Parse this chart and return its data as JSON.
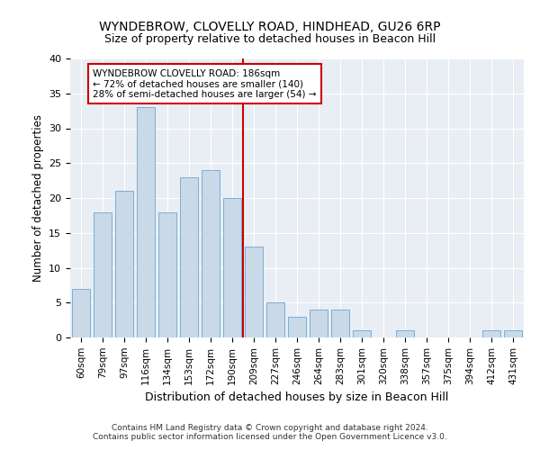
{
  "title1": "WYNDEBROW, CLOVELLY ROAD, HINDHEAD, GU26 6RP",
  "title2": "Size of property relative to detached houses in Beacon Hill",
  "xlabel": "Distribution of detached houses by size in Beacon Hill",
  "ylabel": "Number of detached properties",
  "categories": [
    "60sqm",
    "79sqm",
    "97sqm",
    "116sqm",
    "134sqm",
    "153sqm",
    "172sqm",
    "190sqm",
    "209sqm",
    "227sqm",
    "246sqm",
    "264sqm",
    "283sqm",
    "301sqm",
    "320sqm",
    "338sqm",
    "357sqm",
    "375sqm",
    "394sqm",
    "412sqm",
    "431sqm"
  ],
  "values": [
    7,
    18,
    21,
    33,
    18,
    23,
    24,
    20,
    13,
    5,
    3,
    4,
    4,
    1,
    0,
    1,
    0,
    0,
    0,
    1,
    1
  ],
  "bar_color": "#c9d9e8",
  "bar_edgecolor": "#7bafd4",
  "vline_color": "#cc0000",
  "annotation_text": "WYNDEBROW CLOVELLY ROAD: 186sqm\n← 72% of detached houses are smaller (140)\n28% of semi-detached houses are larger (54) →",
  "annotation_box_color": "#ffffff",
  "annotation_box_edgecolor": "#cc0000",
  "ylim": [
    0,
    40
  ],
  "yticks": [
    0,
    5,
    10,
    15,
    20,
    25,
    30,
    35,
    40
  ],
  "background_color": "#e8eef4",
  "footer1": "Contains HM Land Registry data © Crown copyright and database right 2024.",
  "footer2": "Contains public sector information licensed under the Open Government Licence v3.0."
}
